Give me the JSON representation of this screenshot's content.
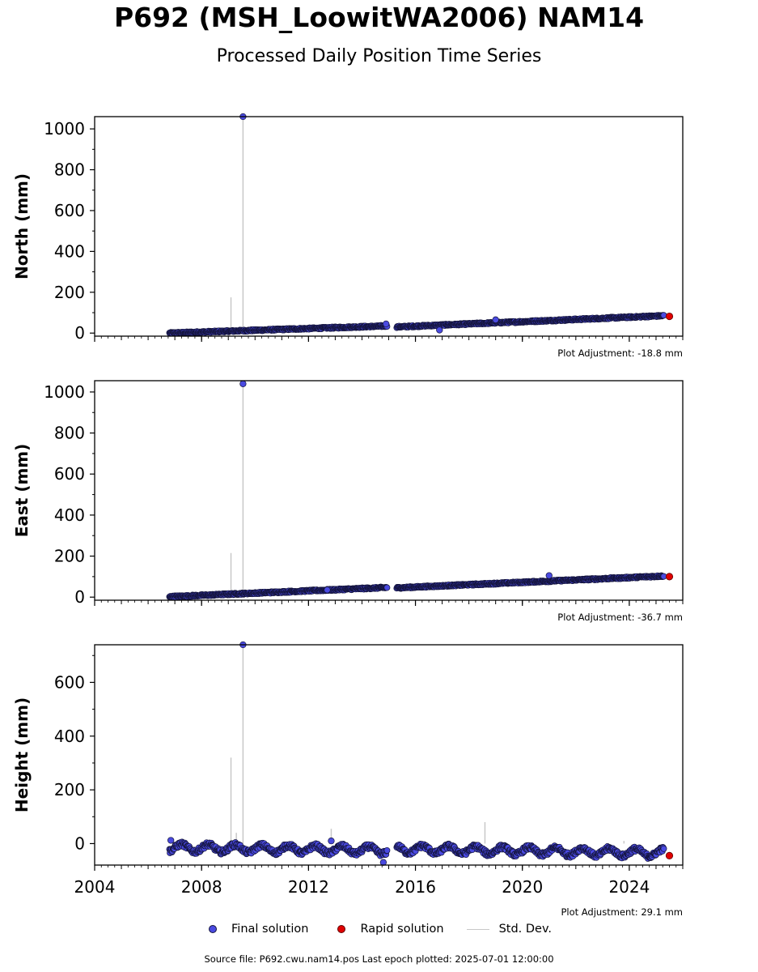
{
  "title": "P692 (MSH_LoowitWA2006) NAM14",
  "subtitle": "Processed Daily Position Time Series",
  "legend": {
    "final_label": "Final solution",
    "rapid_label": "Rapid solution",
    "std_label": "Std. Dev."
  },
  "colors": {
    "final": "#4a4ae0",
    "final_edge": "#14143c",
    "rapid": "#e00000",
    "std": "#c8c8c8"
  },
  "footer": "Source file: P692.cwu.nam14.pos  Last epoch plotted: 2025-07-01 12:00:00",
  "chart_data": [
    {
      "type": "scatter",
      "ylabel": "North (mm)",
      "adjustment_label": "Plot Adjustment: -18.8 mm",
      "xlim": [
        2004,
        2026
      ],
      "ylim": [
        -15,
        1060
      ],
      "yticks": [
        "0",
        "200",
        "400",
        "600",
        "800",
        "1000"
      ],
      "xticks": [
        "2004",
        "2008",
        "2012",
        "2016",
        "2020",
        "2024"
      ],
      "show_xtick_labels": false,
      "series": [
        {
          "name": "Final solution",
          "segments": [
            {
              "start": 2006.8,
              "end": 2014.95,
              "y0": 0,
              "y1": 35,
              "amp": 4
            },
            {
              "start": 2015.3,
              "end": 2025.3,
              "y0": 30,
              "y1": 85,
              "amp": 4
            }
          ],
          "outliers": [
            {
              "x": 2009.55,
              "y": 1060
            },
            {
              "x": 2014.9,
              "y": 45
            },
            {
              "x": 2016.9,
              "y": 15
            },
            {
              "x": 2019.0,
              "y": 65
            }
          ]
        },
        {
          "name": "Rapid solution",
          "points": [
            {
              "x": 2025.5,
              "y": 82
            }
          ]
        }
      ],
      "std_spikes": [
        {
          "x": 2009.1,
          "y": 175
        },
        {
          "x": 2009.55,
          "y": 1060
        }
      ]
    },
    {
      "type": "scatter",
      "ylabel": "East (mm)",
      "adjustment_label": "Plot Adjustment: -36.7 mm",
      "xlim": [
        2004,
        2026
      ],
      "ylim": [
        -15,
        1055
      ],
      "yticks": [
        "0",
        "200",
        "400",
        "600",
        "800",
        "1000"
      ],
      "xticks": [
        "2004",
        "2008",
        "2012",
        "2016",
        "2020",
        "2024"
      ],
      "show_xtick_labels": false,
      "series": [
        {
          "name": "Final solution",
          "segments": [
            {
              "start": 2006.8,
              "end": 2014.95,
              "y0": 2,
              "y1": 47,
              "amp": 4
            },
            {
              "start": 2015.3,
              "end": 2025.3,
              "y0": 45,
              "y1": 103,
              "amp": 4
            }
          ],
          "outliers": [
            {
              "x": 2009.55,
              "y": 1040
            },
            {
              "x": 2021.0,
              "y": 105
            },
            {
              "x": 2012.7,
              "y": 35
            }
          ]
        },
        {
          "name": "Rapid solution",
          "points": [
            {
              "x": 2025.5,
              "y": 100
            }
          ]
        }
      ],
      "std_spikes": [
        {
          "x": 2009.1,
          "y": 215
        },
        {
          "x": 2009.55,
          "y": 1040
        }
      ]
    },
    {
      "type": "scatter",
      "ylabel": "Height (mm)",
      "adjustment_label": "Plot Adjustment: 29.1 mm",
      "xlim": [
        2004,
        2026
      ],
      "ylim": [
        -80,
        740
      ],
      "yticks": [
        "0",
        "200",
        "400",
        "600"
      ],
      "yticks_values": [
        0,
        200,
        400,
        600
      ],
      "xticks": [
        "2004",
        "2008",
        "2012",
        "2016",
        "2020",
        "2024"
      ],
      "show_xtick_labels": true,
      "series": [
        {
          "name": "Final solution",
          "segments": [
            {
              "start": 2006.8,
              "end": 2014.95,
              "y0": -15,
              "y1": -25,
              "amp": 15,
              "seasonal": true
            },
            {
              "start": 2015.3,
              "end": 2025.3,
              "y0": -20,
              "y1": -35,
              "amp": 15,
              "seasonal": true
            }
          ],
          "outliers": [
            {
              "x": 2009.55,
              "y": 740
            },
            {
              "x": 2006.85,
              "y": 12
            },
            {
              "x": 2012.85,
              "y": 10
            },
            {
              "x": 2014.8,
              "y": -70
            }
          ]
        },
        {
          "name": "Rapid solution",
          "points": [
            {
              "x": 2025.5,
              "y": -45
            }
          ]
        }
      ],
      "std_spikes": [
        {
          "x": 2009.1,
          "y": 320
        },
        {
          "x": 2009.3,
          "y": 40
        },
        {
          "x": 2009.55,
          "y": 740
        },
        {
          "x": 2012.85,
          "y": 55
        },
        {
          "x": 2018.6,
          "y": 80
        },
        {
          "x": 2023.8,
          "y": 10
        }
      ]
    }
  ]
}
